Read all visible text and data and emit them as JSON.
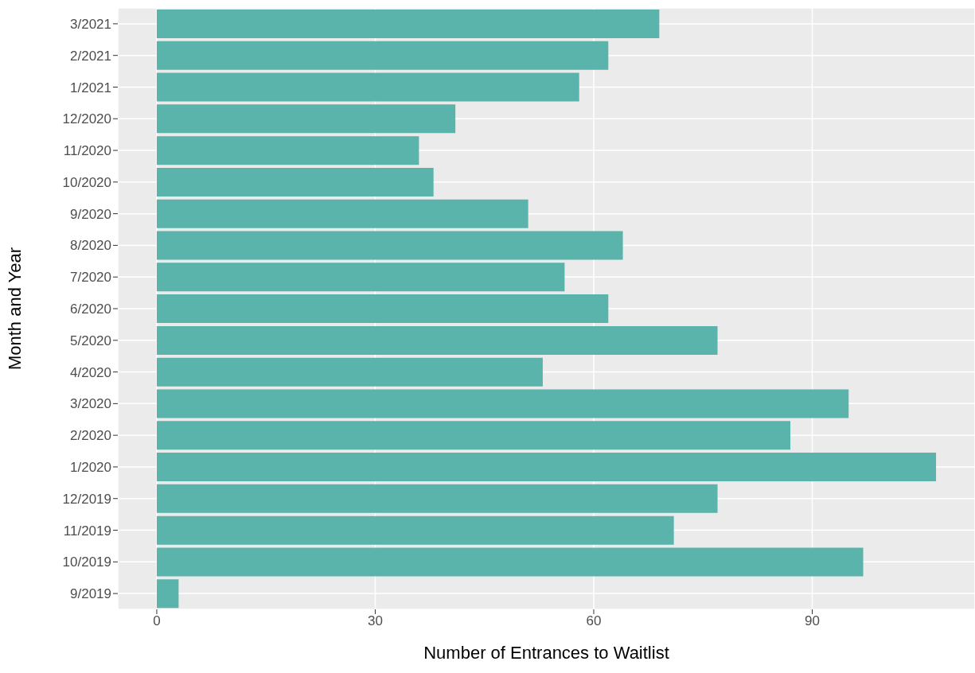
{
  "chart_data": {
    "type": "bar",
    "orientation": "horizontal",
    "xlabel": "Number of Entrances to Waitlist",
    "ylabel": "Month and Year",
    "categories": [
      "3/2021",
      "2/2021",
      "1/2021",
      "12/2020",
      "11/2020",
      "10/2020",
      "9/2020",
      "8/2020",
      "7/2020",
      "6/2020",
      "5/2020",
      "4/2020",
      "3/2020",
      "2/2020",
      "1/2020",
      "12/2019",
      "11/2019",
      "10/2019",
      "9/2019"
    ],
    "values": [
      69,
      62,
      58,
      41,
      36,
      38,
      51,
      64,
      56,
      62,
      77,
      53,
      95,
      87,
      107,
      77,
      71,
      97,
      3
    ],
    "color": "#5ab4ac",
    "xlim": [
      -5.35,
      112.35
    ],
    "xticks": [
      0,
      30,
      60,
      90
    ],
    "grid": true
  }
}
